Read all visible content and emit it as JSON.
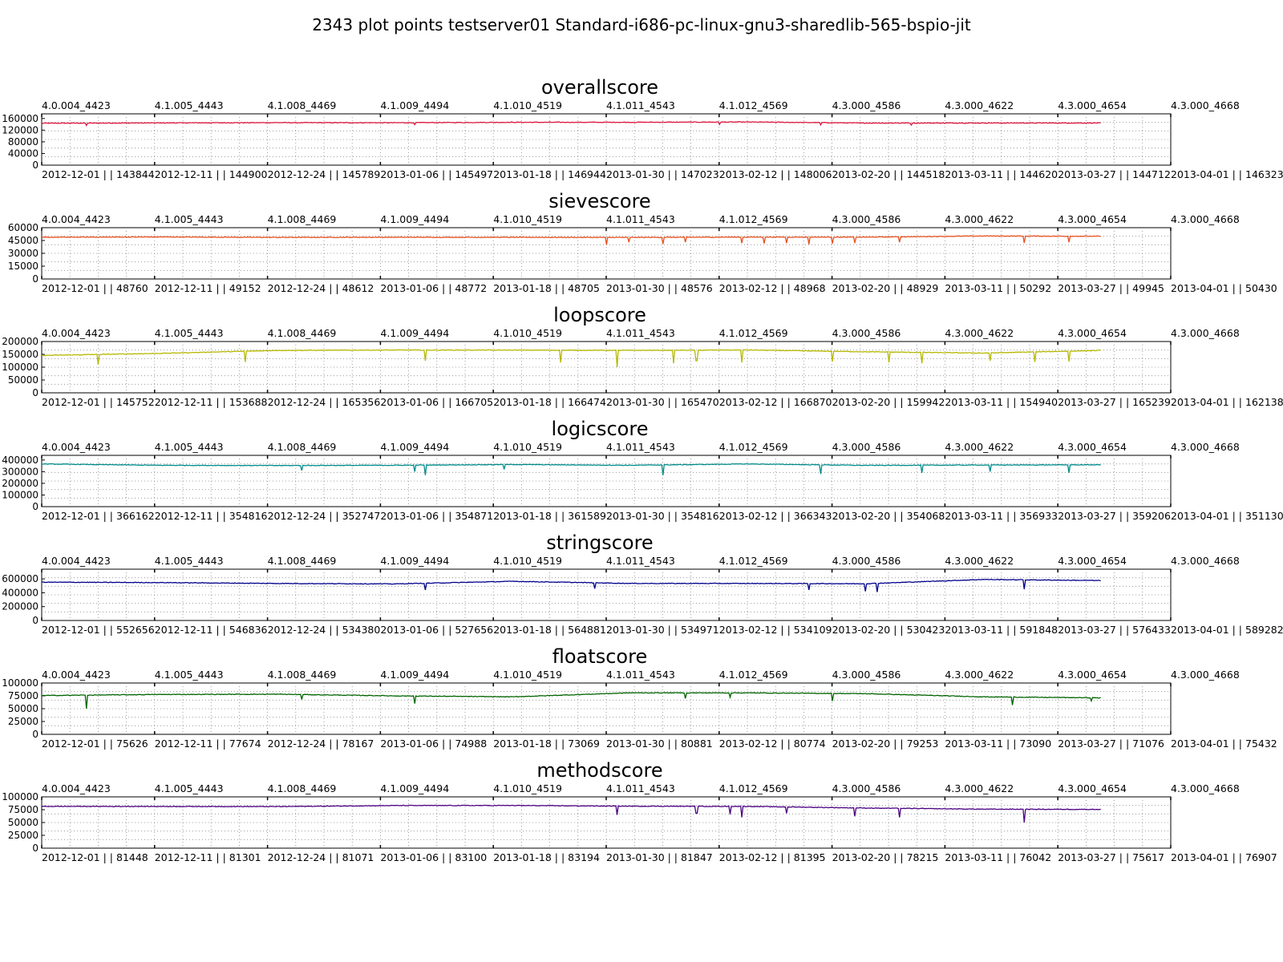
{
  "title": "2343 plot points testserver01 Standard-i686-pc-linux-gnu3-sharedlib-565-bspio-jit",
  "chart_data": [
    {
      "type": "line",
      "title": "overallscore",
      "color": "#dc143c",
      "yticks": [
        0,
        40000,
        80000,
        120000,
        160000
      ],
      "ylim": [
        0,
        176000
      ],
      "top_ticks": [
        "4.0.004_4423",
        "4.1.005_4443",
        "4.1.008_4469",
        "4.1.009_4494",
        "4.1.010_4519",
        "4.1.011_4543",
        "4.1.012_4569",
        "4.3.000_4586",
        "4.3.000_4622",
        "4.3.000_4654",
        "4.3.000_4668"
      ],
      "bottom_ticks": [
        "2012-12-01 | | 143844",
        "2012-12-11 | | 144900",
        "2012-12-24 | | 145789",
        "2013-01-06 | | 145497",
        "2013-01-18 | | 146944",
        "2013-01-30 | | 147023",
        "2013-02-12 | | 148006",
        "2013-02-20 | | 144518",
        "2013-03-11 | | 144620",
        "2013-03-27 | | 144712",
        "2013-04-01 | | 146323"
      ],
      "series": [
        {
          "values": [
            143844,
            144900,
            145789,
            145497,
            146944,
            147023,
            148006,
            144518,
            144620,
            144712
          ]
        }
      ],
      "dips": [
        [
          0.04,
          136000
        ],
        [
          0.33,
          139000
        ],
        [
          0.6,
          139500
        ],
        [
          0.69,
          138000
        ],
        [
          0.77,
          137500
        ]
      ]
    },
    {
      "type": "line",
      "title": "sievescore",
      "color": "#e8501e",
      "yticks": [
        0,
        15000,
        30000,
        45000,
        60000
      ],
      "ylim": [
        0,
        60000
      ],
      "top_ticks": [
        "4.0.004_4423",
        "4.1.005_4443",
        "4.1.008_4469",
        "4.1.009_4494",
        "4.1.010_4519",
        "4.1.011_4543",
        "4.1.012_4569",
        "4.3.000_4586",
        "4.3.000_4622",
        "4.3.000_4654",
        "4.3.000_4668"
      ],
      "bottom_ticks": [
        "2012-12-01 | | 48760",
        "2012-12-11 | | 49152",
        "2012-12-24 | | 48612",
        "2013-01-06 | | 48772",
        "2013-01-18 | | 48705",
        "2013-01-30 | | 48576",
        "2013-02-12 | | 48968",
        "2013-02-20 | | 48929",
        "2013-03-11 | | 50292",
        "2013-03-27 | | 49945",
        "2013-04-01 | | 50430"
      ],
      "series": [
        {
          "values": [
            48760,
            49152,
            48612,
            48772,
            48705,
            48576,
            48968,
            48929,
            50292,
            49945
          ]
        }
      ],
      "dips": [
        [
          0.5,
          40000
        ],
        [
          0.52,
          43000
        ],
        [
          0.55,
          41000
        ],
        [
          0.57,
          43000
        ],
        [
          0.62,
          42000
        ],
        [
          0.64,
          41500
        ],
        [
          0.66,
          42000
        ],
        [
          0.68,
          40500
        ],
        [
          0.7,
          41500
        ],
        [
          0.72,
          42000
        ],
        [
          0.76,
          43000
        ],
        [
          0.87,
          42000
        ],
        [
          0.91,
          43000
        ]
      ]
    },
    {
      "type": "line",
      "title": "loopscore",
      "color": "#b5b800",
      "yticks": [
        0,
        50000,
        100000,
        150000,
        200000
      ],
      "ylim": [
        0,
        200000
      ],
      "top_ticks": [
        "4.0.004_4423",
        "4.1.005_4443",
        "4.1.008_4469",
        "4.1.009_4494",
        "4.1.010_4519",
        "4.1.011_4543",
        "4.1.012_4569",
        "4.3.000_4586",
        "4.3.000_4622",
        "4.3.000_4654",
        "4.3.000_4668"
      ],
      "bottom_ticks": [
        "2012-12-01 | | 145752",
        "2012-12-11 | | 153688",
        "2012-12-24 | | 165356",
        "2013-01-06 | | 166705",
        "2013-01-18 | | 166474",
        "2013-01-30 | | 165470",
        "2013-02-12 | | 166870",
        "2013-02-20 | | 159942",
        "2013-03-11 | | 154940",
        "2013-03-27 | | 165239",
        "2013-04-01 | | 162138"
      ],
      "series": [
        {
          "values": [
            145752,
            153688,
            165356,
            166705,
            166474,
            165470,
            166870,
            159942,
            154940,
            165239
          ]
        }
      ],
      "dips": [
        [
          0.05,
          110000
        ],
        [
          0.18,
          120000
        ],
        [
          0.34,
          125000
        ],
        [
          0.46,
          118000
        ],
        [
          0.51,
          100000
        ],
        [
          0.56,
          115000
        ],
        [
          0.58,
          125000
        ],
        [
          0.62,
          118000
        ],
        [
          0.7,
          122000
        ],
        [
          0.75,
          118000
        ],
        [
          0.78,
          115000
        ],
        [
          0.84,
          125000
        ],
        [
          0.88,
          120000
        ],
        [
          0.91,
          122000
        ]
      ]
    },
    {
      "type": "line",
      "title": "logicscore",
      "color": "#008b8b",
      "yticks": [
        0,
        100000,
        200000,
        300000,
        400000
      ],
      "ylim": [
        0,
        440000
      ],
      "top_ticks": [
        "4.0.004_4423",
        "4.1.005_4443",
        "4.1.008_4469",
        "4.1.009_4494",
        "4.1.010_4519",
        "4.1.011_4543",
        "4.1.012_4569",
        "4.3.000_4586",
        "4.3.000_4622",
        "4.3.000_4654",
        "4.3.000_4668"
      ],
      "bottom_ticks": [
        "2012-12-01 | | 366162",
        "2012-12-11 | | 354816",
        "2012-12-24 | | 352747",
        "2013-01-06 | | 354871",
        "2013-01-18 | | 361589",
        "2013-01-30 | | 354816",
        "2013-02-12 | | 366343",
        "2013-02-20 | | 354068",
        "2013-03-11 | | 356933",
        "2013-03-27 | | 359206",
        "2013-04-01 | | 351130"
      ],
      "series": [
        {
          "values": [
            366162,
            354816,
            352747,
            354871,
            361589,
            354816,
            366343,
            354068,
            356933,
            359206
          ]
        }
      ],
      "dips": [
        [
          0.23,
          310000
        ],
        [
          0.33,
          300000
        ],
        [
          0.34,
          270000
        ],
        [
          0.41,
          320000
        ],
        [
          0.55,
          270000
        ],
        [
          0.69,
          280000
        ],
        [
          0.78,
          290000
        ],
        [
          0.84,
          300000
        ],
        [
          0.91,
          290000
        ]
      ]
    },
    {
      "type": "line",
      "title": "stringscore",
      "color": "#00008b",
      "yticks": [
        0,
        200000,
        400000,
        600000
      ],
      "ylim": [
        0,
        740000
      ],
      "top_ticks": [
        "4.0.004_4423",
        "4.1.005_4443",
        "4.1.008_4469",
        "4.1.009_4494",
        "4.1.010_4519",
        "4.1.011_4543",
        "4.1.012_4569",
        "4.3.000_4586",
        "4.3.000_4622",
        "4.3.000_4654",
        "4.3.000_4668"
      ],
      "bottom_ticks": [
        "2012-12-01 | | 552656",
        "2012-12-11 | | 546836",
        "2012-12-24 | | 534380",
        "2013-01-06 | | 527656",
        "2013-01-18 | | 564881",
        "2013-01-30 | | 534971",
        "2013-02-12 | | 534109",
        "2013-02-20 | | 530423",
        "2013-03-11 | | 591848",
        "2013-03-27 | | 576433",
        "2013-04-01 | | 589282"
      ],
      "series": [
        {
          "values": [
            552656,
            546836,
            534380,
            527656,
            564881,
            534971,
            534109,
            530423,
            591848,
            576433
          ]
        }
      ],
      "dips": [
        [
          0.34,
          440000
        ],
        [
          0.49,
          460000
        ],
        [
          0.68,
          440000
        ],
        [
          0.73,
          420000
        ],
        [
          0.74,
          410000
        ],
        [
          0.87,
          450000
        ]
      ]
    },
    {
      "type": "line",
      "title": "floatscore",
      "color": "#006400",
      "yticks": [
        0,
        25000,
        50000,
        75000,
        100000
      ],
      "ylim": [
        0,
        100000
      ],
      "top_ticks": [
        "4.0.004_4423",
        "4.1.005_4443",
        "4.1.008_4469",
        "4.1.009_4494",
        "4.1.010_4519",
        "4.1.011_4543",
        "4.1.012_4569",
        "4.3.000_4586",
        "4.3.000_4622",
        "4.3.000_4654",
        "4.3.000_4668"
      ],
      "bottom_ticks": [
        "2012-12-01 | | 75626",
        "2012-12-11 | | 77674",
        "2012-12-24 | | 78167",
        "2013-01-06 | | 74988",
        "2013-01-18 | | 73069",
        "2013-01-30 | | 80881",
        "2013-02-12 | | 80774",
        "2013-02-20 | | 79253",
        "2013-03-11 | | 73090",
        "2013-03-27 | | 71076",
        "2013-04-01 | | 75432"
      ],
      "series": [
        {
          "values": [
            75626,
            77674,
            78167,
            74988,
            73069,
            80881,
            80774,
            79253,
            73090,
            71076
          ]
        }
      ],
      "dips": [
        [
          0.04,
          50000
        ],
        [
          0.23,
          68000
        ],
        [
          0.33,
          60000
        ],
        [
          0.57,
          70000
        ],
        [
          0.61,
          72000
        ],
        [
          0.7,
          65000
        ],
        [
          0.86,
          57000
        ],
        [
          0.93,
          65000
        ]
      ]
    },
    {
      "type": "line",
      "title": "methodscore",
      "color": "#4b0082",
      "yticks": [
        0,
        25000,
        50000,
        75000,
        100000
      ],
      "ylim": [
        0,
        100000
      ],
      "top_ticks": [
        "4.0.004_4423",
        "4.1.005_4443",
        "4.1.008_4469",
        "4.1.009_4494",
        "4.1.010_4519",
        "4.1.011_4543",
        "4.1.012_4569",
        "4.3.000_4586",
        "4.3.000_4622",
        "4.3.000_4654",
        "4.3.000_4668"
      ],
      "bottom_ticks": [
        "2012-12-01 | | 81448",
        "2012-12-11 | | 81301",
        "2012-12-24 | | 81071",
        "2013-01-06 | | 83100",
        "2013-01-18 | | 83194",
        "2013-01-30 | | 81847",
        "2013-02-12 | | 81395",
        "2013-02-20 | | 78215",
        "2013-03-11 | | 76042",
        "2013-03-27 | | 75617",
        "2013-04-01 | | 76907"
      ],
      "series": [
        {
          "values": [
            81448,
            81301,
            81071,
            83100,
            83194,
            81847,
            81395,
            78215,
            76042,
            75617
          ]
        }
      ],
      "dips": [
        [
          0.51,
          65000
        ],
        [
          0.58,
          68000
        ],
        [
          0.61,
          66000
        ],
        [
          0.62,
          60000
        ],
        [
          0.66,
          68000
        ],
        [
          0.72,
          62000
        ],
        [
          0.76,
          60000
        ],
        [
          0.87,
          50000
        ]
      ]
    }
  ]
}
